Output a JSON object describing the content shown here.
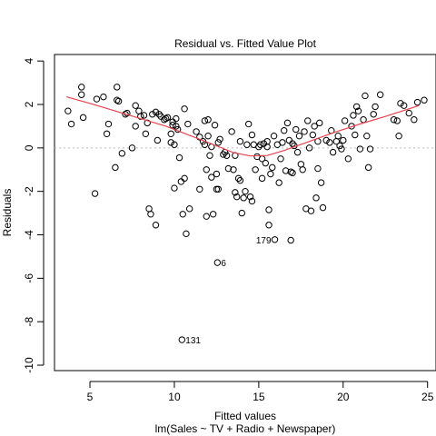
{
  "chart_data": {
    "type": "scatter",
    "title": "Residual vs. Fitted Value Plot",
    "xlabel": "Fitted values",
    "sublabel": "lm(Sales ~ TV + Radio + Newspaper)",
    "ylabel": "Residuals",
    "xlim": [
      2.9,
      25.5
    ],
    "ylim": [
      -10.25,
      4.3
    ],
    "xticks": [
      5,
      10,
      15,
      20,
      25
    ],
    "yticks": [
      -10,
      -8,
      -6,
      -4,
      -2,
      0,
      2,
      4
    ],
    "grid": false,
    "zero_line": true,
    "colors": {
      "points": "#000000",
      "smooth": "#e8434f",
      "zero_line": "#bbbbbb"
    },
    "labeled_points": [
      {
        "label": "131",
        "x": 10.45,
        "y": -8.83
      },
      {
        "label": "6",
        "x": 12.55,
        "y": -5.28
      },
      {
        "label": "179",
        "x": 15.95,
        "y": -4.22
      }
    ],
    "smooth": {
      "x": [
        3.6,
        5,
        6.5,
        8,
        9.5,
        11,
        12.5,
        13.5,
        14.5,
        15.5,
        16.5,
        18,
        19.5,
        21,
        22.5,
        24.5
      ],
      "y": [
        2.35,
        2.05,
        1.7,
        1.35,
        1.0,
        0.55,
        0.1,
        -0.22,
        -0.37,
        -0.35,
        -0.12,
        0.3,
        0.72,
        1.1,
        1.45,
        1.95
      ]
    },
    "points": [
      [
        3.7,
        1.7
      ],
      [
        3.9,
        1.1
      ],
      [
        4.5,
        2.8
      ],
      [
        4.5,
        2.45
      ],
      [
        4.6,
        1.4
      ],
      [
        5.3,
        -2.1
      ],
      [
        5.4,
        2.25
      ],
      [
        5.8,
        2.35
      ],
      [
        6.1,
        1.1
      ],
      [
        6.0,
        0.65
      ],
      [
        6.5,
        -0.9
      ],
      [
        6.6,
        2.8
      ],
      [
        6.6,
        2.2
      ],
      [
        6.7,
        2.15
      ],
      [
        6.9,
        -0.25
      ],
      [
        7.1,
        1.55
      ],
      [
        7.2,
        1.6
      ],
      [
        7.5,
        0.0
      ],
      [
        7.7,
        1.95
      ],
      [
        7.7,
        1.0
      ],
      [
        7.9,
        1.7
      ],
      [
        8.0,
        1.45
      ],
      [
        8.2,
        1.5
      ],
      [
        8.3,
        0.65
      ],
      [
        8.4,
        1.15
      ],
      [
        8.5,
        -2.8
      ],
      [
        8.6,
        -3.05
      ],
      [
        8.7,
        1.55
      ],
      [
        8.9,
        1.65
      ],
      [
        8.9,
        -3.55
      ],
      [
        9.0,
        0.35
      ],
      [
        9.1,
        1.55
      ],
      [
        9.2,
        1.45
      ],
      [
        9.4,
        1.3
      ],
      [
        9.5,
        1.35
      ],
      [
        9.6,
        1.4
      ],
      [
        9.8,
        0.65
      ],
      [
        9.8,
        0.25
      ],
      [
        9.9,
        1.2
      ],
      [
        9.9,
        1.05
      ],
      [
        10.0,
        0.15
      ],
      [
        10.0,
        -1.85
      ],
      [
        10.1,
        1.35
      ],
      [
        10.1,
        1.0
      ],
      [
        10.2,
        0.85
      ],
      [
        10.3,
        -0.45
      ],
      [
        10.4,
        -1.55
      ],
      [
        10.5,
        -3.05
      ],
      [
        10.6,
        1.8
      ],
      [
        10.6,
        -1.4
      ],
      [
        10.7,
        -3.95
      ],
      [
        10.8,
        1.1
      ],
      [
        10.9,
        -2.8
      ],
      [
        11.3,
        0.75
      ],
      [
        11.5,
        0.5
      ],
      [
        11.5,
        -1.9
      ],
      [
        11.7,
        0.3
      ],
      [
        11.8,
        0.15
      ],
      [
        11.8,
        1.25
      ],
      [
        11.9,
        -1.0
      ],
      [
        11.9,
        -3.15
      ],
      [
        12.0,
        0.55
      ],
      [
        12.0,
        1.3
      ],
      [
        12.1,
        -0.35
      ],
      [
        12.2,
        0.05
      ],
      [
        12.2,
        -1.35
      ],
      [
        12.3,
        -3.05
      ],
      [
        12.4,
        1.05
      ],
      [
        12.5,
        -1.2
      ],
      [
        12.5,
        -1.9
      ],
      [
        12.6,
        0.25
      ],
      [
        12.6,
        -1.9
      ],
      [
        12.7,
        0.4
      ],
      [
        12.9,
        -0.3
      ],
      [
        13.0,
        -0.2
      ],
      [
        13.1,
        -0.35
      ],
      [
        13.2,
        -0.95
      ],
      [
        13.4,
        0.75
      ],
      [
        13.5,
        -1.0
      ],
      [
        13.6,
        -2.05
      ],
      [
        13.6,
        -0.35
      ],
      [
        13.7,
        -2.25
      ],
      [
        13.8,
        -1.4
      ],
      [
        13.9,
        0.3
      ],
      [
        13.9,
        -1.5
      ],
      [
        14.0,
        -3.0
      ],
      [
        14.1,
        -2.3
      ],
      [
        14.2,
        -2.0
      ],
      [
        14.3,
        0.15
      ],
      [
        14.4,
        1.1
      ],
      [
        14.5,
        -2.25
      ],
      [
        14.6,
        0.6
      ],
      [
        14.6,
        -2.45
      ],
      [
        14.7,
        0.15
      ],
      [
        14.8,
        -1.0
      ],
      [
        14.9,
        -0.4
      ],
      [
        15.0,
        0.05
      ],
      [
        15.1,
        0.15
      ],
      [
        15.2,
        -0.5
      ],
      [
        15.2,
        -1.4
      ],
      [
        15.3,
        0.2
      ],
      [
        15.4,
        -0.7
      ],
      [
        15.5,
        0.3
      ],
      [
        15.5,
        0.05
      ],
      [
        15.6,
        -3.55
      ],
      [
        15.6,
        -2.85
      ],
      [
        15.7,
        -1.2
      ],
      [
        15.8,
        -0.9
      ],
      [
        15.9,
        0.55
      ],
      [
        16.1,
        0.15
      ],
      [
        16.2,
        -1.6
      ],
      [
        16.3,
        -0.5
      ],
      [
        16.4,
        0.25
      ],
      [
        16.5,
        0.8
      ],
      [
        16.6,
        -1.05
      ],
      [
        16.7,
        1.15
      ],
      [
        16.8,
        0.35
      ],
      [
        16.9,
        -1.1
      ],
      [
        16.9,
        -4.25
      ],
      [
        17.0,
        0.2
      ],
      [
        17.0,
        -1.15
      ],
      [
        17.1,
        0.1
      ],
      [
        17.2,
        0.85
      ],
      [
        17.3,
        -0.2
      ],
      [
        17.4,
        0.55
      ],
      [
        17.5,
        -0.75
      ],
      [
        17.6,
        -1.0
      ],
      [
        17.7,
        0.75
      ],
      [
        17.8,
        -2.8
      ],
      [
        17.9,
        1.25
      ],
      [
        18.0,
        0.0
      ],
      [
        18.1,
        -2.9
      ],
      [
        18.2,
        0.6
      ],
      [
        18.3,
        1.0
      ],
      [
        18.4,
        -2.3
      ],
      [
        18.5,
        0.3
      ],
      [
        18.5,
        -0.95
      ],
      [
        18.6,
        1.15
      ],
      [
        18.7,
        -1.6
      ],
      [
        18.8,
        -2.75
      ],
      [
        19.0,
        0.35
      ],
      [
        19.2,
        0.25
      ],
      [
        19.3,
        0.8
      ],
      [
        19.4,
        -0.2
      ],
      [
        19.6,
        0.3
      ],
      [
        19.7,
        0.55
      ],
      [
        19.8,
        0.1
      ],
      [
        19.9,
        -0.05
      ],
      [
        20.0,
        0.35
      ],
      [
        20.1,
        1.25
      ],
      [
        20.3,
        -0.5
      ],
      [
        20.5,
        1.0
      ],
      [
        20.6,
        1.5
      ],
      [
        20.7,
        0.6
      ],
      [
        20.8,
        1.9
      ],
      [
        20.9,
        1.7
      ],
      [
        21.0,
        -0.05
      ],
      [
        21.2,
        1.3
      ],
      [
        21.3,
        2.4
      ],
      [
        21.4,
        0.55
      ],
      [
        21.5,
        -0.9
      ],
      [
        21.6,
        -0.05
      ],
      [
        21.8,
        1.55
      ],
      [
        21.9,
        1.9
      ],
      [
        22.2,
        2.45
      ],
      [
        23.0,
        1.3
      ],
      [
        23.2,
        1.25
      ],
      [
        23.3,
        0.55
      ],
      [
        23.4,
        2.05
      ],
      [
        23.6,
        1.95
      ],
      [
        23.9,
        1.6
      ],
      [
        24.2,
        1.3
      ],
      [
        24.4,
        2.1
      ],
      [
        24.8,
        2.2
      ],
      [
        10.45,
        -8.83
      ],
      [
        12.55,
        -5.28
      ],
      [
        15.95,
        -4.22
      ]
    ]
  }
}
